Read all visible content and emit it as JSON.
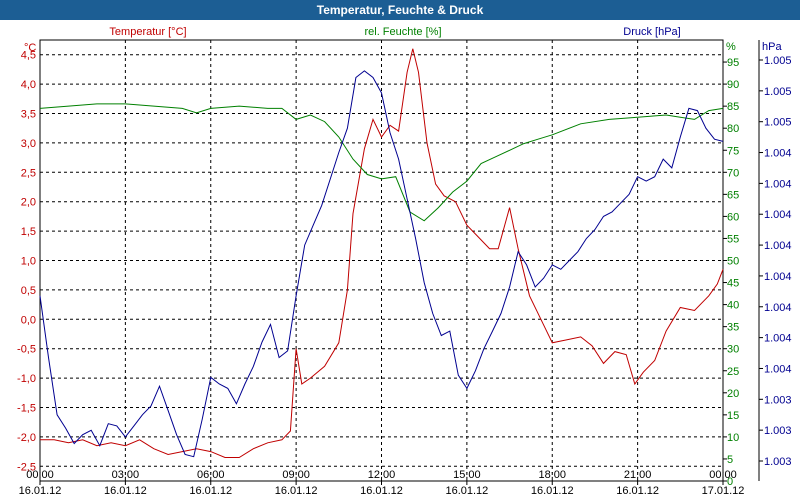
{
  "window": {
    "title": "Temperatur, Feuchte & Druck"
  },
  "chart_data": {
    "type": "line",
    "title": "Temperatur, Feuchte & Druck",
    "x_range_hours": [
      0,
      24
    ],
    "x_ticks": [
      {
        "time": "00:00",
        "date": "16.01.12",
        "h": 0
      },
      {
        "time": "03:00",
        "date": "16.01.12",
        "h": 3
      },
      {
        "time": "06:00",
        "date": "16.01.12",
        "h": 6
      },
      {
        "time": "09:00",
        "date": "16.01.12",
        "h": 9
      },
      {
        "time": "12:00",
        "date": "16.01.12",
        "h": 12
      },
      {
        "time": "15:00",
        "date": "16.01.12",
        "h": 15
      },
      {
        "time": "18:00",
        "date": "16.01.12",
        "h": 18
      },
      {
        "time": "21:00",
        "date": "16.01.12",
        "h": 21
      },
      {
        "time": "00:00",
        "date": "17.01.12",
        "h": 24
      }
    ],
    "grid": true,
    "axes": {
      "temperature": {
        "unit": "°C",
        "min": -2.75,
        "max": 4.75,
        "ticks": [
          {
            "v": 4.5,
            "label": "4,5"
          },
          {
            "v": 4.0,
            "label": "4,0"
          },
          {
            "v": 3.5,
            "label": "3,5"
          },
          {
            "v": 3.0,
            "label": "3,0"
          },
          {
            "v": 2.5,
            "label": "2,5"
          },
          {
            "v": 2.0,
            "label": "2,0"
          },
          {
            "v": 1.5,
            "label": "1,5"
          },
          {
            "v": 1.0,
            "label": "1,0"
          },
          {
            "v": 0.5,
            "label": "0,5"
          },
          {
            "v": 0.0,
            "label": "0,0"
          },
          {
            "v": -0.5,
            "label": "-0,5"
          },
          {
            "v": -1.0,
            "label": "-1,0"
          },
          {
            "v": -1.5,
            "label": "-1,5"
          },
          {
            "v": -2.0,
            "label": "-2,0"
          },
          {
            "v": -2.5,
            "label": "-2,5"
          }
        ]
      },
      "humidity": {
        "unit": "%",
        "min": 0,
        "max": 100,
        "ticks": [
          95,
          90,
          85,
          80,
          75,
          70,
          65,
          60,
          55,
          50,
          45,
          40,
          35,
          30,
          25,
          20,
          15,
          10,
          5,
          0
        ]
      },
      "pressure": {
        "unit": "hPa",
        "tick_labels": [
          "1.005",
          "1.005",
          "1.005",
          "1.004",
          "1.004",
          "1.004",
          "1.004",
          "1.004",
          "1.004",
          "1.004",
          "1.004",
          "1.003",
          "1.003",
          "1.003"
        ]
      }
    },
    "series": [
      {
        "name": "Temperatur [°C]",
        "axis": "temperature",
        "color": "#c00000",
        "points": [
          [
            0.0,
            -2.05
          ],
          [
            0.5,
            -2.05
          ],
          [
            1.0,
            -2.1
          ],
          [
            1.5,
            -2.05
          ],
          [
            2.0,
            -2.15
          ],
          [
            2.5,
            -2.1
          ],
          [
            3.0,
            -2.15
          ],
          [
            3.5,
            -2.05
          ],
          [
            4.0,
            -2.2
          ],
          [
            4.5,
            -2.3
          ],
          [
            5.0,
            -2.25
          ],
          [
            5.5,
            -2.2
          ],
          [
            6.0,
            -2.25
          ],
          [
            6.5,
            -2.35
          ],
          [
            7.0,
            -2.35
          ],
          [
            7.5,
            -2.2
          ],
          [
            8.0,
            -2.1
          ],
          [
            8.5,
            -2.05
          ],
          [
            8.8,
            -1.9
          ],
          [
            9.0,
            -0.5
          ],
          [
            9.2,
            -1.1
          ],
          [
            9.5,
            -1.0
          ],
          [
            10.0,
            -0.8
          ],
          [
            10.5,
            -0.4
          ],
          [
            10.8,
            0.5
          ],
          [
            11.0,
            1.8
          ],
          [
            11.4,
            2.9
          ],
          [
            11.7,
            3.4
          ],
          [
            12.0,
            3.1
          ],
          [
            12.3,
            3.3
          ],
          [
            12.6,
            3.2
          ],
          [
            12.9,
            4.2
          ],
          [
            13.1,
            4.6
          ],
          [
            13.3,
            4.2
          ],
          [
            13.6,
            3.0
          ],
          [
            13.9,
            2.3
          ],
          [
            14.2,
            2.1
          ],
          [
            14.6,
            2.0
          ],
          [
            15.0,
            1.6
          ],
          [
            15.4,
            1.4
          ],
          [
            15.8,
            1.2
          ],
          [
            16.1,
            1.2
          ],
          [
            16.5,
            1.9
          ],
          [
            16.8,
            1.2
          ],
          [
            17.2,
            0.4
          ],
          [
            17.6,
            0.0
          ],
          [
            18.0,
            -0.4
          ],
          [
            18.5,
            -0.35
          ],
          [
            19.0,
            -0.3
          ],
          [
            19.4,
            -0.45
          ],
          [
            19.8,
            -0.75
          ],
          [
            20.2,
            -0.55
          ],
          [
            20.6,
            -0.6
          ],
          [
            20.9,
            -1.1
          ],
          [
            21.2,
            -0.9
          ],
          [
            21.6,
            -0.7
          ],
          [
            22.0,
            -0.2
          ],
          [
            22.5,
            0.2
          ],
          [
            23.0,
            0.15
          ],
          [
            23.5,
            0.4
          ],
          [
            23.8,
            0.6
          ],
          [
            24.0,
            0.85
          ]
        ]
      },
      {
        "name": "rel. Feuchte [%]",
        "axis": "humidity",
        "color": "#008000",
        "points": [
          [
            0.0,
            84.5
          ],
          [
            1.0,
            85.0
          ],
          [
            2.0,
            85.5
          ],
          [
            3.0,
            85.5
          ],
          [
            4.0,
            85.0
          ],
          [
            5.0,
            84.5
          ],
          [
            5.5,
            83.5
          ],
          [
            6.0,
            84.5
          ],
          [
            7.0,
            85.0
          ],
          [
            8.0,
            84.5
          ],
          [
            8.5,
            84.5
          ],
          [
            9.0,
            82.0
          ],
          [
            9.5,
            83.0
          ],
          [
            10.0,
            81.5
          ],
          [
            10.5,
            78.0
          ],
          [
            11.0,
            73.0
          ],
          [
            11.5,
            69.5
          ],
          [
            12.0,
            68.5
          ],
          [
            12.5,
            69.0
          ],
          [
            13.0,
            61.0
          ],
          [
            13.5,
            59.0
          ],
          [
            14.0,
            62.0
          ],
          [
            14.5,
            65.5
          ],
          [
            15.0,
            68.0
          ],
          [
            15.5,
            72.0
          ],
          [
            16.0,
            73.5
          ],
          [
            16.5,
            75.0
          ],
          [
            17.0,
            76.5
          ],
          [
            17.5,
            77.5
          ],
          [
            18.0,
            78.5
          ],
          [
            19.0,
            81.0
          ],
          [
            20.0,
            82.0
          ],
          [
            21.0,
            82.5
          ],
          [
            22.0,
            83.0
          ],
          [
            22.5,
            82.5
          ],
          [
            23.0,
            82.0
          ],
          [
            23.5,
            84.0
          ],
          [
            24.0,
            84.5
          ]
        ]
      },
      {
        "name": "Druck [hPa]",
        "axis": "pressure",
        "color": "#000090",
        "points_pct": [
          [
            0.0,
            42.0
          ],
          [
            0.3,
            28.0
          ],
          [
            0.6,
            15.0
          ],
          [
            0.9,
            12.0
          ],
          [
            1.2,
            8.5
          ],
          [
            1.5,
            10.5
          ],
          [
            1.8,
            11.5
          ],
          [
            2.1,
            8.0
          ],
          [
            2.4,
            13.0
          ],
          [
            2.7,
            12.5
          ],
          [
            3.0,
            10.0
          ],
          [
            3.3,
            12.5
          ],
          [
            3.6,
            15.0
          ],
          [
            3.9,
            17.0
          ],
          [
            4.2,
            21.5
          ],
          [
            4.5,
            16.0
          ],
          [
            4.8,
            10.5
          ],
          [
            5.1,
            6.0
          ],
          [
            5.4,
            5.5
          ],
          [
            5.7,
            14.0
          ],
          [
            6.0,
            23.5
          ],
          [
            6.3,
            22.0
          ],
          [
            6.6,
            21.0
          ],
          [
            6.9,
            17.5
          ],
          [
            7.2,
            22.0
          ],
          [
            7.5,
            26.0
          ],
          [
            7.8,
            31.5
          ],
          [
            8.1,
            35.5
          ],
          [
            8.4,
            28.0
          ],
          [
            8.7,
            29.5
          ],
          [
            9.0,
            42.0
          ],
          [
            9.3,
            53.5
          ],
          [
            9.6,
            58.0
          ],
          [
            9.9,
            62.5
          ],
          [
            10.2,
            68.5
          ],
          [
            10.5,
            74.5
          ],
          [
            10.8,
            80.0
          ],
          [
            11.1,
            91.5
          ],
          [
            11.4,
            93.0
          ],
          [
            11.7,
            91.5
          ],
          [
            12.0,
            88.0
          ],
          [
            12.3,
            79.0
          ],
          [
            12.6,
            73.0
          ],
          [
            12.9,
            64.0
          ],
          [
            13.2,
            55.0
          ],
          [
            13.5,
            45.0
          ],
          [
            13.8,
            38.0
          ],
          [
            14.1,
            33.0
          ],
          [
            14.4,
            34.0
          ],
          [
            14.7,
            24.0
          ],
          [
            15.0,
            21.0
          ],
          [
            15.3,
            25.0
          ],
          [
            15.6,
            30.0
          ],
          [
            15.9,
            34.0
          ],
          [
            16.2,
            38.0
          ],
          [
            16.5,
            44.0
          ],
          [
            16.8,
            52.0
          ],
          [
            17.1,
            49.0
          ],
          [
            17.4,
            44.0
          ],
          [
            17.7,
            46.0
          ],
          [
            18.0,
            49.0
          ],
          [
            18.3,
            48.0
          ],
          [
            18.6,
            50.0
          ],
          [
            18.9,
            52.0
          ],
          [
            19.2,
            55.0
          ],
          [
            19.5,
            57.0
          ],
          [
            19.8,
            60.0
          ],
          [
            20.1,
            61.0
          ],
          [
            20.4,
            63.0
          ],
          [
            20.7,
            65.0
          ],
          [
            21.0,
            69.0
          ],
          [
            21.3,
            68.0
          ],
          [
            21.6,
            69.0
          ],
          [
            21.9,
            73.0
          ],
          [
            22.2,
            71.0
          ],
          [
            22.5,
            78.0
          ],
          [
            22.8,
            84.5
          ],
          [
            23.1,
            84.0
          ],
          [
            23.4,
            80.0
          ],
          [
            23.7,
            77.5
          ],
          [
            24.0,
            77.0
          ]
        ]
      }
    ]
  }
}
